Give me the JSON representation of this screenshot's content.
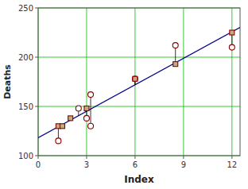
{
  "chart_data": {
    "type": "scatter",
    "xlabel": "Index",
    "ylabel": "Deaths",
    "xlim": [
      0,
      12.5
    ],
    "ylim": [
      100,
      250
    ],
    "xticks": [
      0,
      3,
      6,
      9,
      12
    ],
    "yticks": [
      100,
      150,
      200,
      250
    ],
    "grid": true,
    "series": [
      {
        "type": "scatter",
        "marker": "circle",
        "color": "#8B0000",
        "x": [
          1.25,
          2.5,
          3.0,
          3.25,
          3.25,
          6.0,
          8.5,
          12.0
        ],
        "values": [
          115,
          148,
          138,
          162,
          130,
          178,
          212,
          210
        ],
        "fitted": [
          129.33,
          140.53,
          145.01,
          147.25,
          147.25,
          171.89,
          194.29,
          225.66
        ]
      },
      {
        "type": "scatter",
        "marker": "square",
        "color": "#C8A882",
        "x": [
          1.25,
          1.5,
          2.0,
          3.0,
          6.0,
          8.5,
          12.0
        ],
        "values": [
          130,
          130,
          138,
          148,
          178,
          193,
          225
        ],
        "fitted": [
          129.33,
          131.57,
          136.05,
          145.01,
          171.89,
          194.29,
          225.66
        ]
      },
      {
        "type": "line",
        "color": "#00008B",
        "x": [
          0,
          12.5
        ],
        "values": [
          118.13,
          230.14
        ]
      }
    ]
  }
}
